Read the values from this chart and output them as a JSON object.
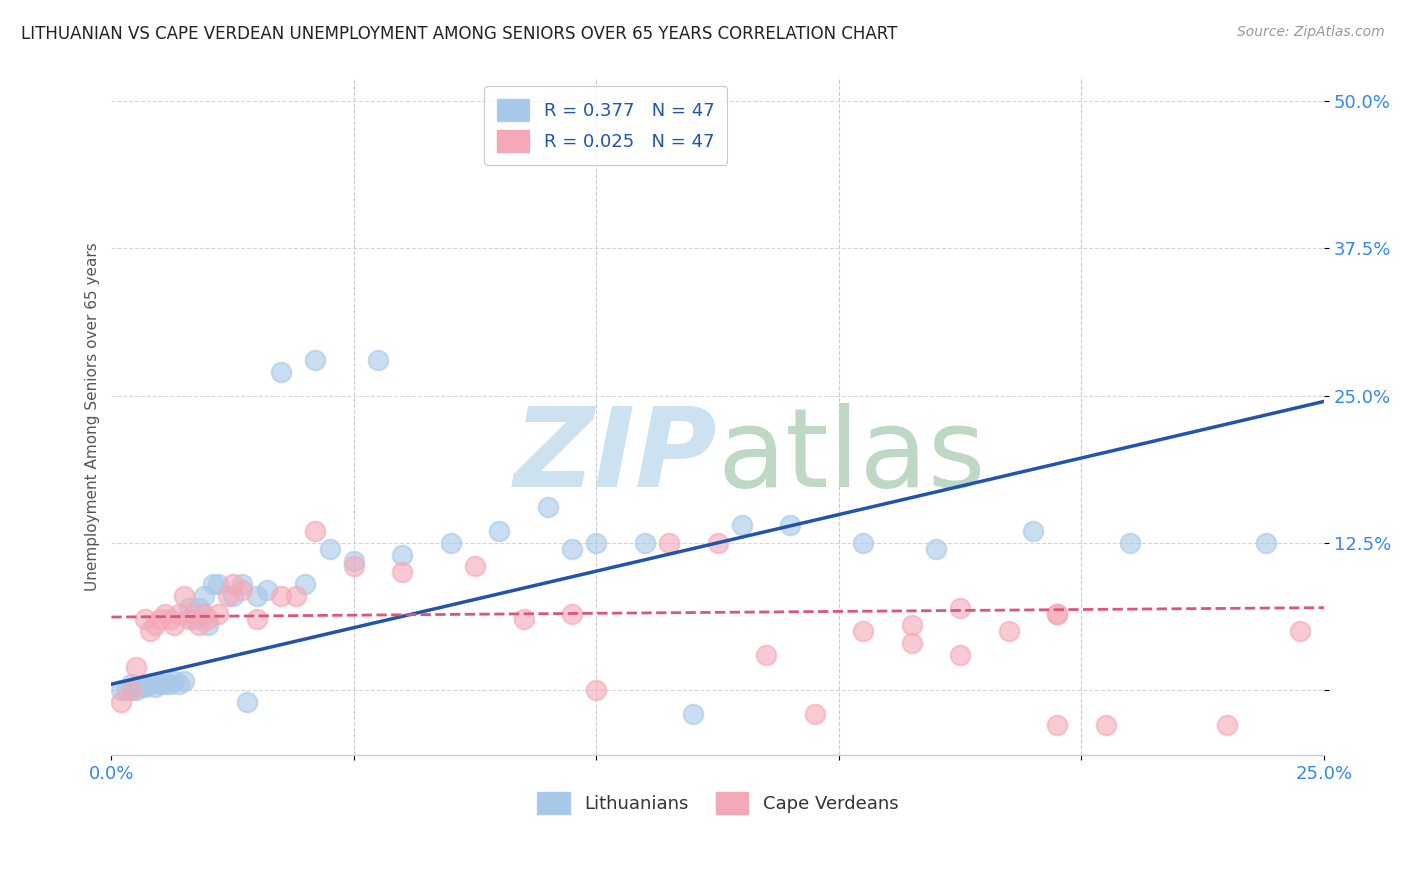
{
  "title": "LITHUANIAN VS CAPE VERDEAN UNEMPLOYMENT AMONG SENIORS OVER 65 YEARS CORRELATION CHART",
  "source": "Source: ZipAtlas.com",
  "ylabel": "Unemployment Among Seniors over 65 years",
  "xlim": [
    0.0,
    0.25
  ],
  "ylim": [
    -0.055,
    0.52
  ],
  "yticks": [
    0.0,
    0.125,
    0.25,
    0.375,
    0.5
  ],
  "ytick_labels": [
    "",
    "12.5%",
    "25.0%",
    "37.5%",
    "50.0%"
  ],
  "xticks": [
    0.0,
    0.05,
    0.1,
    0.15,
    0.2,
    0.25
  ],
  "xtick_labels": [
    "0.0%",
    "",
    "",
    "",
    "",
    "25.0%"
  ],
  "legend_R1": "R = 0.377",
  "legend_N1": "N = 47",
  "legend_R2": "R = 0.025",
  "legend_N2": "N = 47",
  "blue_color": "#a8c8e8",
  "pink_color": "#f4a8b8",
  "blue_line_color": "#2255aa",
  "pink_line_color": "#dd5577",
  "tick_color": "#3388ee",
  "legend_text_color": "#2255aa",
  "watermark_zip_color": "#c8dff0",
  "watermark_atlas_color": "#b8d4c0",
  "blue_scatter_x": [
    0.002,
    0.003,
    0.004,
    0.005,
    0.006,
    0.007,
    0.008,
    0.009,
    0.01,
    0.011,
    0.012,
    0.013,
    0.014,
    0.015,
    0.016,
    0.017,
    0.018,
    0.019,
    0.02,
    0.021,
    0.022,
    0.025,
    0.027,
    0.028,
    0.03,
    0.032,
    0.035,
    0.04,
    0.042,
    0.045,
    0.05,
    0.055,
    0.06,
    0.07,
    0.08,
    0.09,
    0.095,
    0.1,
    0.11,
    0.12,
    0.13,
    0.14,
    0.155,
    0.17,
    0.19,
    0.21,
    0.238
  ],
  "blue_scatter_y": [
    0.0,
    0.0,
    0.005,
    0.0,
    0.003,
    0.003,
    0.005,
    0.003,
    0.005,
    0.005,
    0.005,
    0.008,
    0.005,
    0.008,
    0.07,
    0.06,
    0.07,
    0.08,
    0.055,
    0.09,
    0.09,
    0.08,
    0.09,
    -0.01,
    0.08,
    0.085,
    0.27,
    0.09,
    0.28,
    0.12,
    0.11,
    0.28,
    0.115,
    0.125,
    0.135,
    0.155,
    0.12,
    0.125,
    0.125,
    -0.02,
    0.14,
    0.14,
    0.125,
    0.12,
    0.135,
    0.125,
    0.125
  ],
  "pink_scatter_x": [
    0.002,
    0.004,
    0.005,
    0.007,
    0.008,
    0.009,
    0.01,
    0.011,
    0.012,
    0.013,
    0.014,
    0.015,
    0.016,
    0.017,
    0.018,
    0.019,
    0.02,
    0.022,
    0.024,
    0.025,
    0.027,
    0.03,
    0.035,
    0.038,
    0.042,
    0.05,
    0.06,
    0.075,
    0.085,
    0.095,
    0.1,
    0.115,
    0.125,
    0.135,
    0.145,
    0.155,
    0.165,
    0.175,
    0.185,
    0.195,
    0.165,
    0.175,
    0.195,
    0.195,
    0.205,
    0.23,
    0.245
  ],
  "pink_scatter_y": [
    -0.01,
    0.0,
    0.02,
    0.06,
    0.05,
    0.055,
    0.06,
    0.065,
    0.06,
    0.055,
    0.065,
    0.08,
    0.06,
    0.065,
    0.055,
    0.065,
    0.06,
    0.065,
    0.08,
    0.09,
    0.085,
    0.06,
    0.08,
    0.08,
    0.135,
    0.105,
    0.1,
    0.105,
    0.06,
    0.065,
    0.0,
    0.125,
    0.125,
    0.03,
    -0.02,
    0.05,
    0.055,
    0.07,
    0.05,
    0.065,
    0.04,
    0.03,
    -0.03,
    0.065,
    -0.03,
    -0.03,
    0.05
  ],
  "blue_line_x": [
    0.0,
    0.25
  ],
  "blue_line_y": [
    0.005,
    0.245
  ],
  "pink_line_x": [
    0.0,
    0.25
  ],
  "pink_line_y": [
    0.062,
    0.07
  ],
  "bottom_legend_labels": [
    "Lithuanians",
    "Cape Verdeans"
  ],
  "bottom_legend_colors": [
    "#a8c8e8",
    "#f4a8b8"
  ]
}
